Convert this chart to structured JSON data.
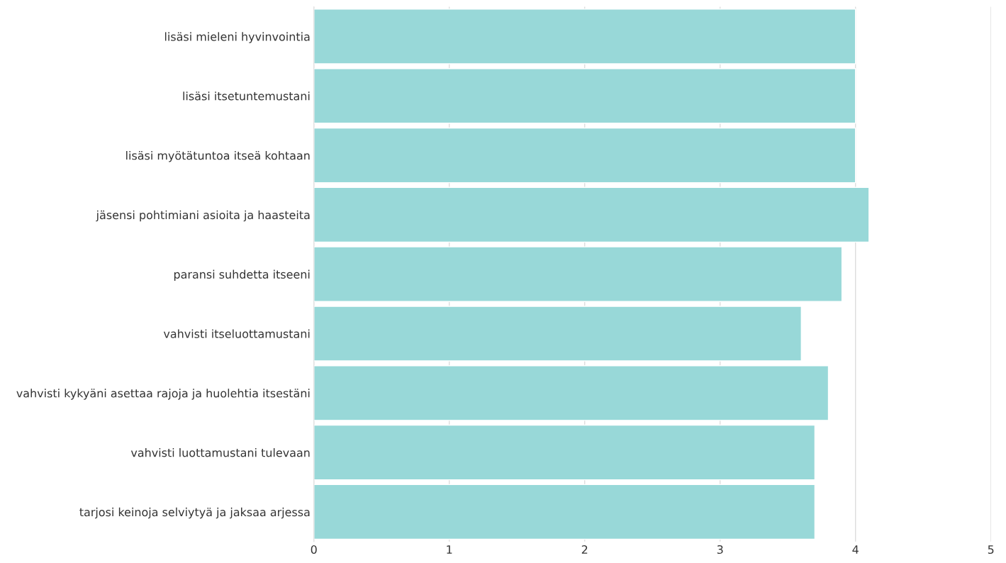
{
  "chart_data": {
    "type": "bar",
    "orientation": "horizontal",
    "categories": [
      "lisäsi mieleni hyvinvointia",
      "lisäsi itsetuntemustani",
      "lisäsi myötätuntoa itseä kohtaan",
      "jäsensi pohtimiani asioita ja haasteita",
      "paransi suhdetta itseeni",
      "vahvisti itseluottamustani",
      "vahvisti kykyäni asettaa rajoja ja huolehtia itsestäni",
      "vahvisti luottamustani tulevaan",
      "tarjosi keinoja selviytyä ja jaksaa arjessa"
    ],
    "values": [
      4.0,
      4.0,
      4.0,
      4.1,
      3.9,
      3.6,
      3.8,
      3.7,
      3.7
    ],
    "color": "#98d8d8",
    "xlim": [
      0,
      5
    ],
    "xticks": [
      0,
      1,
      2,
      3,
      4,
      5
    ],
    "grid": "x",
    "legend": false
  }
}
